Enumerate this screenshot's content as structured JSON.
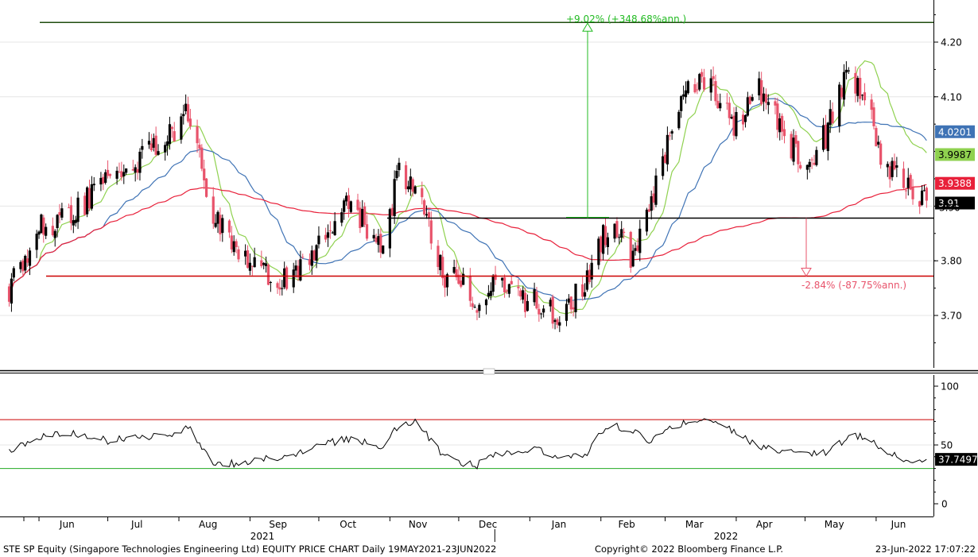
{
  "footer": {
    "left": "STE SP Equity (Singapore Technologies Engineering Ltd) EQUITY PRICE CHART  Daily 19MAY2021-23JUN2022",
    "copyright": "Copyright© 2022 Bloomberg Finance L.P.",
    "timestamp": "23-Jun-2022 17:07:22"
  },
  "colors": {
    "up_candle": "#000000",
    "down_candle": "#e8536b",
    "ma_short": "#8fd14f",
    "ma_mid": "#3f73b5",
    "ma_long": "#e8203a",
    "level_line": "#cc0000",
    "target_line": "#1f4d0f",
    "support_line": "#000000",
    "rsi_line": "#000000",
    "rsi_upper": "#cc0000",
    "rsi_lower": "#22aa22"
  },
  "chart_data": [
    {
      "type": "line",
      "panel": "price",
      "candles": "daily OHLC candlesticks",
      "yticks": [
        3.7,
        3.8,
        4.1,
        4.2
      ],
      "ylim": [
        3.605,
        4.275
      ],
      "month_labels": [
        "Jun",
        "Jul",
        "Aug",
        "Sep",
        "Oct",
        "Nov",
        "Dec",
        "Jan",
        "Feb",
        "Mar",
        "Apr",
        "May",
        "Jun"
      ],
      "year_labels": [
        "2021",
        "2022"
      ],
      "close_anchors": {
        "x": [
          "2021-05-19",
          "2021-06-01",
          "2021-06-15",
          "2021-07-01",
          "2021-07-20",
          "2021-08-01",
          "2021-08-05",
          "2021-08-15",
          "2021-08-25",
          "2021-09-05",
          "2021-09-20",
          "2021-10-01",
          "2021-10-15",
          "2021-10-28",
          "2021-11-05",
          "2021-11-12",
          "2021-11-25",
          "2021-12-01",
          "2021-12-08",
          "2021-12-15",
          "2021-12-25",
          "2022-01-05",
          "2022-01-15",
          "2022-01-25",
          "2022-02-01",
          "2022-02-08",
          "2022-02-15",
          "2022-02-22",
          "2022-03-01",
          "2022-03-10",
          "2022-03-20",
          "2022-03-31",
          "2022-04-10",
          "2022-04-20",
          "2022-04-30",
          "2022-05-10",
          "2022-05-20",
          "2022-05-28",
          "2022-06-05",
          "2022-06-12",
          "2022-06-23"
        ],
        "y": [
          3.75,
          3.86,
          3.88,
          3.95,
          4.0,
          4.05,
          4.07,
          3.9,
          3.82,
          3.78,
          3.76,
          3.83,
          3.91,
          3.82,
          3.96,
          3.93,
          3.77,
          3.78,
          3.7,
          3.75,
          3.74,
          3.72,
          3.7,
          3.76,
          3.84,
          3.86,
          3.8,
          3.88,
          4.0,
          4.1,
          4.14,
          4.04,
          4.12,
          4.05,
          3.97,
          4.03,
          4.15,
          4.08,
          3.97,
          3.95,
          3.91
        ]
      },
      "moving_averages": [
        {
          "end": 3.9987
        },
        {
          "end": 4.0201
        },
        {
          "end": 3.9388
        }
      ],
      "last_price": 3.91,
      "levels": {
        "target": 4.236,
        "support": 3.878,
        "lower": 3.772
      },
      "price_labels": [
        {
          "value": 4.0201,
          "text": "4.0201"
        },
        {
          "value": 3.9987,
          "text": "3.9987"
        },
        {
          "value": 3.9388,
          "text": "3.9388"
        },
        {
          "value": 3.91,
          "text": "3.91"
        }
      ],
      "partial_tick_label": "3.90",
      "annotations": {
        "up": "+9.02% (+348.68%ann.)",
        "down": "-2.84% (-87.75%ann.)"
      }
    },
    {
      "type": "line",
      "panel": "rsi",
      "ylim": [
        0,
        100
      ],
      "yticks": [
        0,
        50,
        100
      ],
      "upper_level": 71.5,
      "lower_level": 30,
      "last_value": 37.7497,
      "last_label": "37.7497",
      "anchors": {
        "x": [
          "2021-05-19",
          "2021-06-01",
          "2021-06-15",
          "2021-07-01",
          "2021-07-20",
          "2021-08-01",
          "2021-08-05",
          "2021-08-15",
          "2021-08-25",
          "2021-09-05",
          "2021-09-20",
          "2021-10-01",
          "2021-10-15",
          "2021-10-28",
          "2021-11-05",
          "2021-11-12",
          "2021-11-25",
          "2021-12-01",
          "2021-12-08",
          "2021-12-15",
          "2021-12-25",
          "2022-01-05",
          "2022-01-15",
          "2022-01-25",
          "2022-02-01",
          "2022-02-08",
          "2022-02-15",
          "2022-02-22",
          "2022-03-01",
          "2022-03-10",
          "2022-03-20",
          "2022-03-31",
          "2022-04-10",
          "2022-04-20",
          "2022-04-30",
          "2022-05-10",
          "2022-05-20",
          "2022-05-28",
          "2022-06-05",
          "2022-06-12",
          "2022-06-23"
        ],
        "y": [
          45,
          57,
          60,
          54,
          57,
          58,
          67,
          36,
          34,
          38,
          42,
          50,
          56,
          48,
          66,
          71,
          40,
          36,
          32,
          40,
          45,
          45,
          38,
          40,
          60,
          65,
          63,
          50,
          64,
          69,
          71,
          62,
          50,
          46,
          44,
          44,
          57,
          56,
          46,
          38,
          37.7
        ]
      }
    }
  ]
}
